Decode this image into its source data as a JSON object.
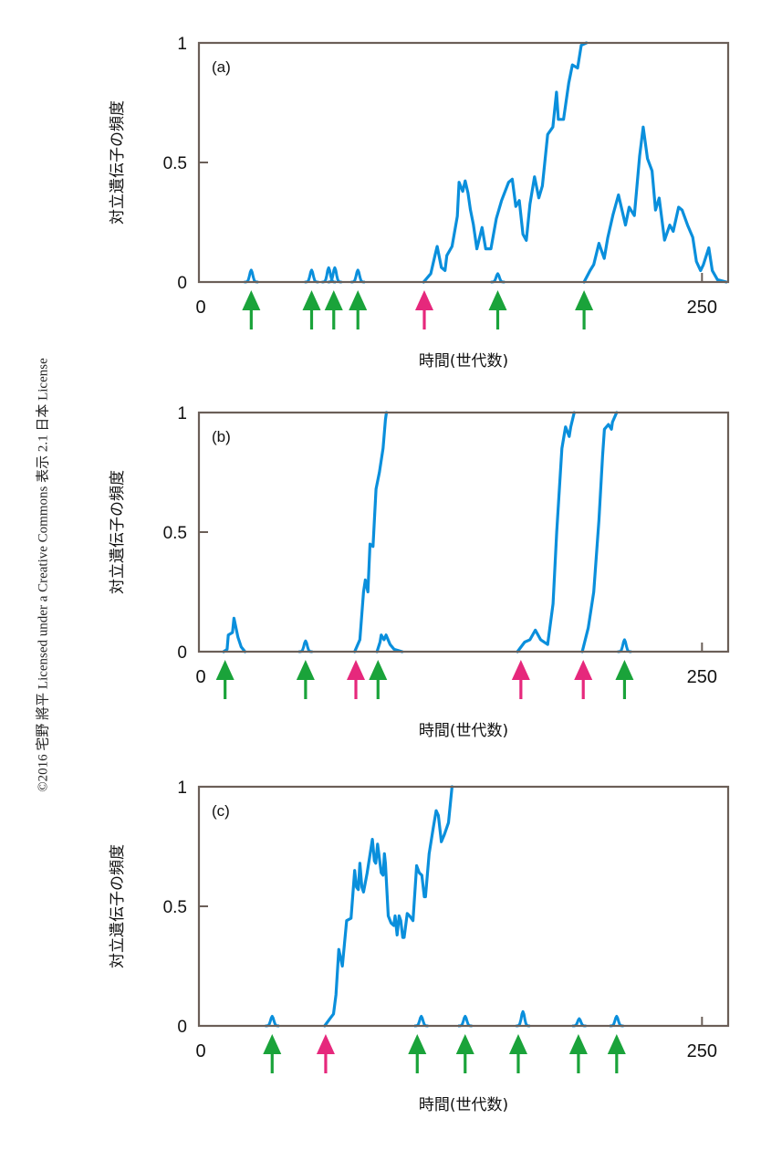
{
  "copyright": "©2016 宅野 將平 Licensed under a Creative Commons 表示 2.1 日本 License",
  "colors": {
    "line": "#0a8fdc",
    "axis": "#6b5f58",
    "green_arrow": "#1aa33a",
    "pink_arrow": "#e6287c"
  },
  "chart_data": [
    {
      "type": "line",
      "panel_label": "(a)",
      "xlabel": "時間(世代数)",
      "ylabel": "対立遺伝子の頻度",
      "xlim": [
        0,
        263
      ],
      "ylim": [
        0,
        1
      ],
      "xticks": [
        {
          "value": 0,
          "label": "0"
        },
        {
          "value": 250,
          "label": "250"
        }
      ],
      "yticks": [
        {
          "value": 0,
          "label": "0"
        },
        {
          "value": 0.5,
          "label": "0.5"
        },
        {
          "value": 1,
          "label": "1"
        }
      ],
      "series": [
        {
          "name": "allele-1",
          "points": [
            [
              111.7,
              0
            ],
            [
              115.2,
              0.035
            ],
            [
              117.3,
              0.111
            ],
            [
              118.4,
              0.149
            ],
            [
              120.5,
              0.061
            ],
            [
              122.3,
              0.048
            ],
            [
              123.2,
              0.111
            ],
            [
              125.8,
              0.149
            ],
            [
              128.4,
              0.275
            ],
            [
              129.3,
              0.417
            ],
            [
              131.1,
              0.379
            ],
            [
              132.3,
              0.423
            ],
            [
              133.7,
              0.372
            ],
            [
              134.9,
              0.303
            ],
            [
              136.4,
              0.24
            ],
            [
              138.1,
              0.139
            ],
            [
              140.7,
              0.228
            ],
            [
              142.5,
              0.139
            ],
            [
              145.1,
              0.139
            ],
            [
              147.8,
              0.265
            ],
            [
              150.4,
              0.341
            ],
            [
              153.9,
              0.417
            ],
            [
              155.7,
              0.43
            ],
            [
              157.5,
              0.316
            ],
            [
              159.2,
              0.341
            ],
            [
              161,
              0.2
            ],
            [
              162.7,
              0.174
            ],
            [
              164.5,
              0.326
            ],
            [
              166.8,
              0.44
            ],
            [
              168.9,
              0.352
            ],
            [
              170.7,
              0.402
            ],
            [
              173.3,
              0.617
            ],
            [
              175.9,
              0.648
            ],
            [
              177.7,
              0.794
            ],
            [
              178.6,
              0.68
            ],
            [
              181.2,
              0.68
            ],
            [
              183.8,
              0.832
            ],
            [
              185.6,
              0.908
            ],
            [
              188.2,
              0.895
            ],
            [
              190,
              0.99
            ],
            [
              192.6,
              1
            ]
          ]
        },
        {
          "name": "allele-2",
          "points": [
            [
              191.4,
              0
            ],
            [
              194.4,
              0.048
            ],
            [
              196.2,
              0.073
            ],
            [
              198.8,
              0.162
            ],
            [
              201.4,
              0.099
            ],
            [
              203.2,
              0.186
            ],
            [
              205.8,
              0.283
            ],
            [
              208.5,
              0.364
            ],
            [
              212,
              0.238
            ],
            [
              213.8,
              0.313
            ],
            [
              216.4,
              0.278
            ],
            [
              219,
              0.528
            ],
            [
              220.8,
              0.648
            ],
            [
              222.9,
              0.516
            ],
            [
              225.2,
              0.465
            ],
            [
              226.9,
              0.301
            ],
            [
              228.7,
              0.351
            ],
            [
              231.4,
              0.175
            ],
            [
              234,
              0.238
            ],
            [
              235.7,
              0.212
            ],
            [
              238.4,
              0.313
            ],
            [
              240.1,
              0.301
            ],
            [
              242.8,
              0.238
            ],
            [
              245.4,
              0.187
            ],
            [
              247.2,
              0.086
            ],
            [
              249.3,
              0.048
            ],
            [
              250.7,
              0.073
            ],
            [
              253.4,
              0.143
            ],
            [
              255.1,
              0.048
            ],
            [
              257.7,
              0.01
            ],
            [
              262.1,
              0
            ]
          ]
        }
      ],
      "blips": [
        [
          26,
          0.05
        ],
        [
          56,
          0.05
        ],
        [
          64.5,
          0.06
        ],
        [
          67.5,
          0.06
        ],
        [
          79,
          0.05
        ],
        [
          148.5,
          0.035
        ]
      ],
      "arrows": [
        {
          "gen": 26,
          "type": "beneficial"
        },
        {
          "gen": 56,
          "type": "beneficial"
        },
        {
          "gen": 67,
          "type": "beneficial"
        },
        {
          "gen": 79,
          "type": "beneficial"
        },
        {
          "gen": 112,
          "type": "deleterious"
        },
        {
          "gen": 148.5,
          "type": "beneficial"
        },
        {
          "gen": 191.4,
          "type": "beneficial"
        }
      ]
    },
    {
      "type": "line",
      "panel_label": "(b)",
      "xlabel": "時間(世代数)",
      "ylabel": "対立遺伝子の頻度",
      "xlim": [
        0,
        263
      ],
      "ylim": [
        0,
        1
      ],
      "xticks": [
        {
          "value": 0,
          "label": "0"
        },
        {
          "value": 250,
          "label": "250"
        }
      ],
      "yticks": [
        {
          "value": 0,
          "label": "0"
        },
        {
          "value": 0.5,
          "label": "0.5"
        },
        {
          "value": 1,
          "label": "1"
        }
      ],
      "series": [
        {
          "name": "allele-1",
          "points": [
            [
              12.3,
              0
            ],
            [
              14,
              0.01
            ],
            [
              14.6,
              0.07
            ],
            [
              16.7,
              0.08
            ],
            [
              17.4,
              0.14
            ],
            [
              17.9,
              0.12
            ],
            [
              19.4,
              0.06
            ],
            [
              21,
              0.02
            ],
            [
              22.9,
              0
            ]
          ]
        },
        {
          "name": "allele-2",
          "points": [
            [
              77.4,
              0
            ],
            [
              80,
              0.05
            ],
            [
              81.8,
              0.25
            ],
            [
              82.7,
              0.3
            ],
            [
              84,
              0.25
            ],
            [
              85,
              0.45
            ],
            [
              86.5,
              0.44
            ],
            [
              87.2,
              0.55
            ],
            [
              88,
              0.68
            ],
            [
              89.7,
              0.75
            ],
            [
              91.5,
              0.85
            ],
            [
              92.7,
              0.97
            ],
            [
              93.2,
              1
            ]
          ]
        },
        {
          "name": "allele-3",
          "points": [
            [
              88.5,
              0
            ],
            [
              90,
              0.04
            ],
            [
              90.6,
              0.07
            ],
            [
              92,
              0.05
            ],
            [
              93,
              0.07
            ],
            [
              95,
              0.03
            ],
            [
              97,
              0.01
            ],
            [
              101,
              0
            ]
          ]
        },
        {
          "name": "allele-4",
          "points": [
            [
              158.3,
              0
            ],
            [
              161.9,
              0.04
            ],
            [
              164.5,
              0.05
            ],
            [
              167.2,
              0.09
            ],
            [
              169.8,
              0.05
            ],
            [
              173.3,
              0.03
            ],
            [
              176,
              0.2
            ],
            [
              177.8,
              0.5
            ],
            [
              180.4,
              0.85
            ],
            [
              182.2,
              0.94
            ],
            [
              184,
              0.9
            ],
            [
              184.8,
              0.94
            ],
            [
              186.5,
              1
            ]
          ]
        },
        {
          "name": "allele-5",
          "points": [
            [
              190.5,
              0
            ],
            [
              193.5,
              0.1
            ],
            [
              196.2,
              0.25
            ],
            [
              198.8,
              0.55
            ],
            [
              200.6,
              0.82
            ],
            [
              201.5,
              0.93
            ],
            [
              203.5,
              0.95
            ],
            [
              205,
              0.93
            ],
            [
              205.5,
              0.96
            ],
            [
              207.6,
              1
            ]
          ]
        }
      ],
      "blips": [
        [
          53,
          0.045
        ],
        [
          211.5,
          0.05
        ]
      ],
      "arrows": [
        {
          "gen": 13,
          "type": "beneficial"
        },
        {
          "gen": 53,
          "type": "beneficial"
        },
        {
          "gen": 78,
          "type": "deleterious"
        },
        {
          "gen": 89,
          "type": "beneficial"
        },
        {
          "gen": 160,
          "type": "deleterious"
        },
        {
          "gen": 191,
          "type": "deleterious"
        },
        {
          "gen": 211.5,
          "type": "beneficial"
        }
      ]
    },
    {
      "type": "line",
      "panel_label": "(c)",
      "xlabel": "時間(世代数)",
      "ylabel": "対立遺伝子の頻度",
      "xlim": [
        0,
        263
      ],
      "ylim": [
        0,
        1
      ],
      "xticks": [
        {
          "value": 0,
          "label": "0"
        },
        {
          "value": 250,
          "label": "250"
        }
      ],
      "yticks": [
        {
          "value": 0,
          "label": "0"
        },
        {
          "value": 0.5,
          "label": "0.5"
        },
        {
          "value": 1,
          "label": "1"
        }
      ],
      "series": [
        {
          "name": "allele-1",
          "points": [
            [
              62.5,
              0
            ],
            [
              65.1,
              0.03
            ],
            [
              66.9,
              0.05
            ],
            [
              68.1,
              0.13
            ],
            [
              69.5,
              0.32
            ],
            [
              71.3,
              0.25
            ],
            [
              73.4,
              0.44
            ],
            [
              75.6,
              0.45
            ],
            [
              77.4,
              0.65
            ],
            [
              78.3,
              0.58
            ],
            [
              79.2,
              0.57
            ],
            [
              80,
              0.68
            ],
            [
              81,
              0.58
            ],
            [
              81.8,
              0.56
            ],
            [
              83.6,
              0.64
            ],
            [
              86.2,
              0.78
            ],
            [
              87.2,
              0.69
            ],
            [
              87.9,
              0.68
            ],
            [
              88.8,
              0.76
            ],
            [
              89.7,
              0.7
            ],
            [
              90.6,
              0.64
            ],
            [
              91.5,
              0.63
            ],
            [
              92.2,
              0.72
            ],
            [
              92.7,
              0.68
            ],
            [
              94.1,
              0.46
            ],
            [
              95.5,
              0.43
            ],
            [
              96.8,
              0.42
            ],
            [
              97.5,
              0.46
            ],
            [
              98.5,
              0.38
            ],
            [
              99.5,
              0.46
            ],
            [
              100.3,
              0.44
            ],
            [
              101.3,
              0.37
            ],
            [
              102,
              0.37
            ],
            [
              103.5,
              0.47
            ],
            [
              104.7,
              0.46
            ],
            [
              106.4,
              0.44
            ],
            [
              108.2,
              0.67
            ],
            [
              109.5,
              0.64
            ],
            [
              110.8,
              0.63
            ],
            [
              112,
              0.54
            ],
            [
              112.6,
              0.54
            ],
            [
              114.4,
              0.72
            ],
            [
              116.5,
              0.83
            ],
            [
              117.9,
              0.9
            ],
            [
              119,
              0.88
            ],
            [
              120.5,
              0.77
            ],
            [
              122,
              0.8
            ],
            [
              124,
              0.85
            ],
            [
              125.8,
              1
            ]
          ]
        }
      ],
      "blips": [
        [
          36.4,
          0.04
        ],
        [
          110.5,
          0.04
        ],
        [
          132.3,
          0.04
        ],
        [
          161,
          0.06
        ],
        [
          189,
          0.03
        ],
        [
          207.6,
          0.04
        ]
      ],
      "arrows": [
        {
          "gen": 36.4,
          "type": "beneficial"
        },
        {
          "gen": 63,
          "type": "deleterious"
        },
        {
          "gen": 108.5,
          "type": "beneficial"
        },
        {
          "gen": 132.3,
          "type": "beneficial"
        },
        {
          "gen": 158.7,
          "type": "beneficial"
        },
        {
          "gen": 188.6,
          "type": "beneficial"
        },
        {
          "gen": 207.6,
          "type": "beneficial"
        }
      ]
    }
  ]
}
